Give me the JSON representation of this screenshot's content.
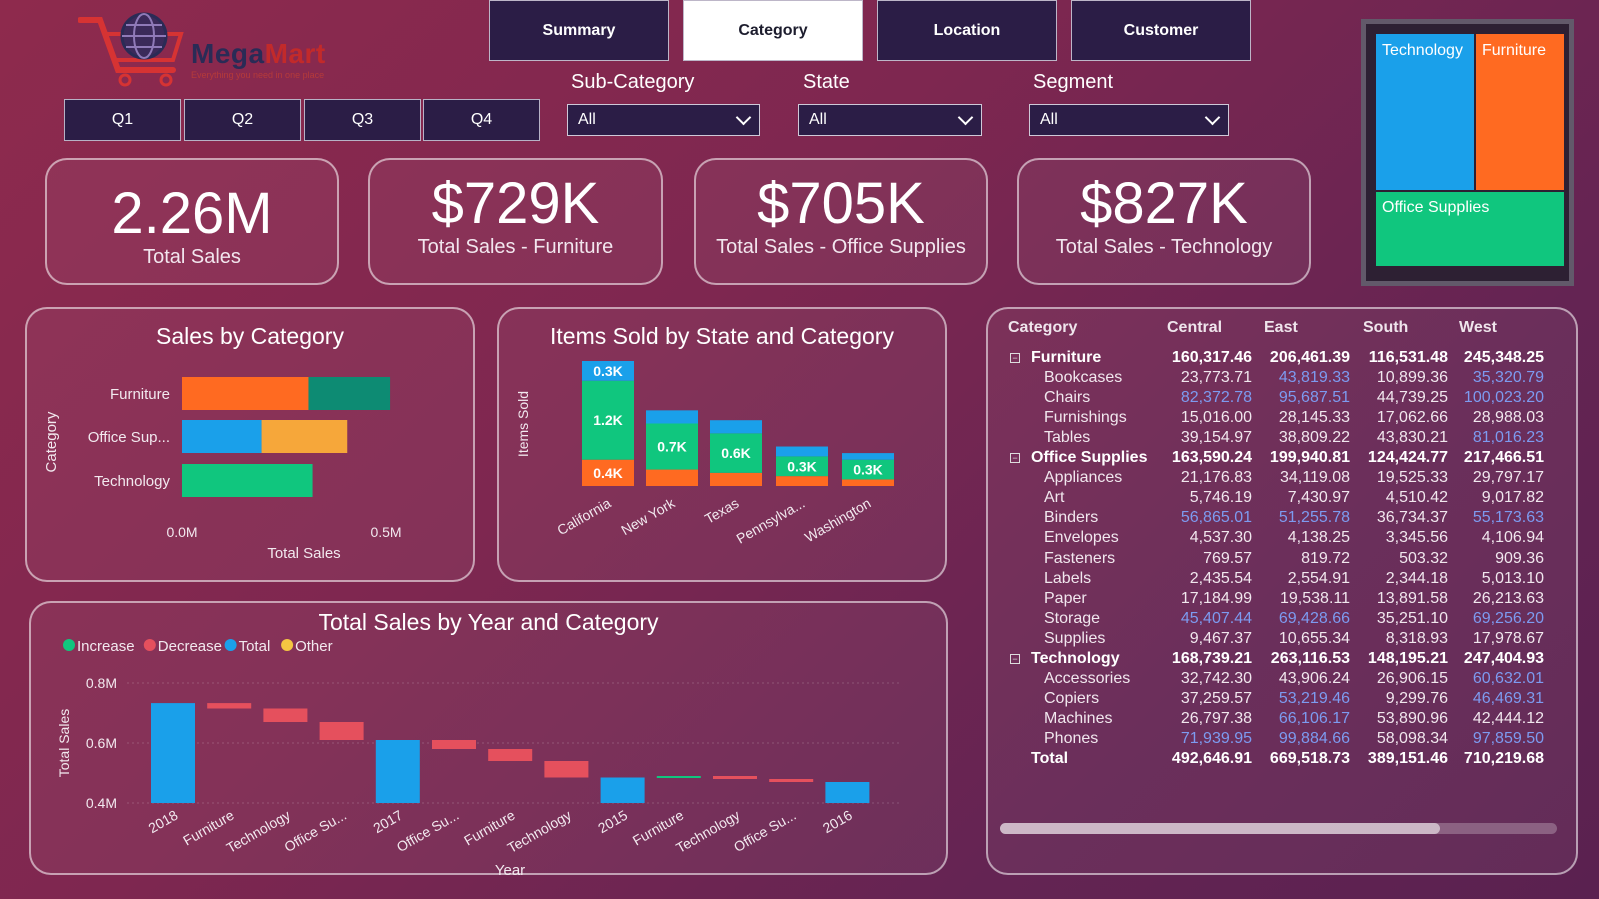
{
  "brand": {
    "name_part1": "Mega",
    "name_part2": "Mart",
    "tagline": "Everything you need in one place"
  },
  "nav": [
    {
      "label": "Summary",
      "active": false
    },
    {
      "label": "Category",
      "active": true
    },
    {
      "label": "Location",
      "active": false
    },
    {
      "label": "Customer",
      "active": false
    }
  ],
  "quarters": [
    "Q1",
    "Q2",
    "Q3",
    "Q4"
  ],
  "filters": {
    "subcategory": {
      "label": "Sub-Category",
      "value": "All"
    },
    "state": {
      "label": "State",
      "value": "All"
    },
    "segment": {
      "label": "Segment",
      "value": "All"
    }
  },
  "kpis": [
    {
      "value": "2.26M",
      "label": "Total Sales"
    },
    {
      "value": "$729K",
      "label": "Total Sales - Furniture"
    },
    {
      "value": "$705K",
      "label": "Total Sales - Office Supplies"
    },
    {
      "value": "$827K",
      "label": "Total Sales - Technology"
    }
  ],
  "treemap": {
    "tiles": [
      {
        "label": "Technology",
        "color": "#1aa0ea"
      },
      {
        "label": "Furniture",
        "color": "#ff6a21"
      },
      {
        "label": "Office Supplies",
        "color": "#10c67e"
      }
    ]
  },
  "colors": {
    "blue": "#1aa0ea",
    "orange": "#ff6a21",
    "green": "#10c67e",
    "teal": "#0d8b73",
    "amber": "#f6a73a",
    "red": "#e5505d",
    "yellow": "#f4c542"
  },
  "chart_data": [
    {
      "id": "sales_by_category",
      "type": "bar",
      "orientation": "horizontal",
      "stacked": true,
      "title": "Sales by Category",
      "xlabel": "Total Sales",
      "ylabel": "Category",
      "categories": [
        "Furniture",
        "Office Sup...",
        "Technology"
      ],
      "segments": [
        [
          {
            "value": 0.31,
            "color": "#ff6a21"
          },
          {
            "value": 0.2,
            "color": "#0d8b73"
          }
        ],
        [
          {
            "value": 0.195,
            "color": "#1aa0ea"
          },
          {
            "value": 0.21,
            "color": "#f6a73a"
          }
        ],
        [
          {
            "value": 0.32,
            "color": "#10c67e"
          }
        ]
      ],
      "xticks": [
        "0.0M",
        "0.5M"
      ],
      "xtick_values": [
        0,
        0.5
      ],
      "xlim": [
        0,
        0.5
      ]
    },
    {
      "id": "items_by_state",
      "type": "bar",
      "stacked": true,
      "title": "Items Sold by State and Category",
      "ylabel": "Items Sold",
      "categories": [
        "California",
        "New York",
        "Texas",
        "Pennsylva...",
        "Washington"
      ],
      "series": [
        {
          "name": "Furniture",
          "color": "#ff6a21",
          "values": [
            400,
            250,
            200,
            150,
            100
          ]
        },
        {
          "name": "Office Supplies",
          "color": "#10c67e",
          "values": [
            1200,
            700,
            600,
            300,
            300
          ]
        },
        {
          "name": "Technology",
          "color": "#1aa0ea",
          "values": [
            300,
            200,
            200,
            150,
            100
          ]
        }
      ],
      "data_labels": [
        [
          "0.4K",
          "1.2K",
          "0.3K"
        ],
        [
          "",
          "0.7K",
          ""
        ],
        [
          "",
          "0.6K",
          ""
        ],
        [
          "",
          "0.3K",
          ""
        ],
        [
          "",
          "0.3K",
          ""
        ]
      ],
      "ylim": [
        0,
        1900
      ]
    },
    {
      "id": "sales_by_year",
      "type": "waterfall",
      "title": "Total Sales by Year and Category",
      "xlabel": "Year",
      "ylabel": "Total Sales",
      "legend": [
        {
          "label": "Increase",
          "color": "#10c67e"
        },
        {
          "label": "Decrease",
          "color": "#e5505d"
        },
        {
          "label": "Total",
          "color": "#1aa0ea"
        },
        {
          "label": "Other",
          "color": "#f4c542"
        }
      ],
      "yticks": [
        "0.4M",
        "0.6M",
        "0.8M"
      ],
      "ytick_values": [
        0.4,
        0.6,
        0.8
      ],
      "ylim": [
        0.4,
        0.8
      ],
      "bars": [
        {
          "label": "2018",
          "kind": "total",
          "from": 0.4,
          "to": 0.733
        },
        {
          "label": "Furniture",
          "kind": "decrease",
          "from": 0.733,
          "to": 0.715
        },
        {
          "label": "Technology",
          "kind": "decrease",
          "from": 0.715,
          "to": 0.67
        },
        {
          "label": "Office Su...",
          "kind": "decrease",
          "from": 0.67,
          "to": 0.61
        },
        {
          "label": "2017",
          "kind": "total",
          "from": 0.4,
          "to": 0.61
        },
        {
          "label": "Office Su...",
          "kind": "decrease",
          "from": 0.61,
          "to": 0.58
        },
        {
          "label": "Furniture",
          "kind": "decrease",
          "from": 0.58,
          "to": 0.54
        },
        {
          "label": "Technology",
          "kind": "decrease",
          "from": 0.54,
          "to": 0.485
        },
        {
          "label": "2015",
          "kind": "total",
          "from": 0.4,
          "to": 0.485
        },
        {
          "label": "Furniture",
          "kind": "increase",
          "from": 0.485,
          "to": 0.49
        },
        {
          "label": "Technology",
          "kind": "decrease",
          "from": 0.49,
          "to": 0.48
        },
        {
          "label": "Office Su...",
          "kind": "decrease",
          "from": 0.48,
          "to": 0.47
        },
        {
          "label": "2016",
          "kind": "total",
          "from": 0.4,
          "to": 0.47
        }
      ]
    }
  ],
  "matrix": {
    "headers": [
      "Category",
      "Central",
      "East",
      "South",
      "West"
    ],
    "rows": [
      {
        "level": 0,
        "label": "Furniture",
        "values": [
          "160,317.46",
          "206,461.39",
          "116,531.48",
          "245,348.25"
        ]
      },
      {
        "level": 1,
        "label": "Bookcases",
        "values": [
          "23,773.71",
          "43,819.33",
          "10,899.36",
          "35,320.79"
        ],
        "blue": [
          false,
          true,
          false,
          true
        ]
      },
      {
        "level": 1,
        "label": "Chairs",
        "values": [
          "82,372.78",
          "95,687.51",
          "44,739.25",
          "100,023.20"
        ],
        "blue": [
          true,
          true,
          false,
          true
        ]
      },
      {
        "level": 1,
        "label": "Furnishings",
        "values": [
          "15,016.00",
          "28,145.33",
          "17,062.66",
          "28,988.03"
        ],
        "blue": [
          false,
          false,
          false,
          false
        ]
      },
      {
        "level": 1,
        "label": "Tables",
        "values": [
          "39,154.97",
          "38,809.22",
          "43,830.21",
          "81,016.23"
        ],
        "blue": [
          false,
          false,
          false,
          true
        ]
      },
      {
        "level": 0,
        "label": "Office Supplies",
        "values": [
          "163,590.24",
          "199,940.81",
          "124,424.77",
          "217,466.51"
        ]
      },
      {
        "level": 1,
        "label": "Appliances",
        "values": [
          "21,176.83",
          "34,119.08",
          "19,525.33",
          "29,797.17"
        ],
        "blue": [
          false,
          false,
          false,
          false
        ]
      },
      {
        "level": 1,
        "label": "Art",
        "values": [
          "5,746.19",
          "7,430.97",
          "4,510.42",
          "9,017.82"
        ],
        "blue": [
          false,
          false,
          false,
          false
        ]
      },
      {
        "level": 1,
        "label": "Binders",
        "values": [
          "56,865.01",
          "51,255.78",
          "36,734.37",
          "55,173.63"
        ],
        "blue": [
          true,
          true,
          false,
          true
        ]
      },
      {
        "level": 1,
        "label": "Envelopes",
        "values": [
          "4,537.30",
          "4,138.25",
          "3,345.56",
          "4,106.94"
        ],
        "blue": [
          false,
          false,
          false,
          false
        ]
      },
      {
        "level": 1,
        "label": "Fasteners",
        "values": [
          "769.57",
          "819.72",
          "503.32",
          "909.36"
        ],
        "blue": [
          false,
          false,
          false,
          false
        ]
      },
      {
        "level": 1,
        "label": "Labels",
        "values": [
          "2,435.54",
          "2,554.91",
          "2,344.18",
          "5,013.10"
        ],
        "blue": [
          false,
          false,
          false,
          false
        ]
      },
      {
        "level": 1,
        "label": "Paper",
        "values": [
          "17,184.99",
          "19,538.11",
          "13,891.58",
          "26,213.63"
        ],
        "blue": [
          false,
          false,
          false,
          false
        ]
      },
      {
        "level": 1,
        "label": "Storage",
        "values": [
          "45,407.44",
          "69,428.66",
          "35,251.10",
          "69,256.20"
        ],
        "blue": [
          true,
          true,
          false,
          true
        ]
      },
      {
        "level": 1,
        "label": "Supplies",
        "values": [
          "9,467.37",
          "10,655.34",
          "8,318.93",
          "17,978.67"
        ],
        "blue": [
          false,
          false,
          false,
          false
        ]
      },
      {
        "level": 0,
        "label": "Technology",
        "values": [
          "168,739.21",
          "263,116.53",
          "148,195.21",
          "247,404.93"
        ]
      },
      {
        "level": 1,
        "label": "Accessories",
        "values": [
          "32,742.30",
          "43,906.24",
          "26,906.15",
          "60,632.01"
        ],
        "blue": [
          false,
          false,
          false,
          true
        ]
      },
      {
        "level": 1,
        "label": "Copiers",
        "values": [
          "37,259.57",
          "53,219.46",
          "9,299.76",
          "46,469.31"
        ],
        "blue": [
          false,
          true,
          false,
          true
        ]
      },
      {
        "level": 1,
        "label": "Machines",
        "values": [
          "26,797.38",
          "66,106.17",
          "53,890.96",
          "42,444.12"
        ],
        "blue": [
          false,
          true,
          false,
          false
        ]
      },
      {
        "level": 1,
        "label": "Phones",
        "values": [
          "71,939.95",
          "99,884.66",
          "58,098.34",
          "97,859.50"
        ],
        "blue": [
          true,
          true,
          false,
          true
        ]
      },
      {
        "level": -1,
        "label": "Total",
        "values": [
          "492,646.91",
          "669,518.73",
          "389,151.46",
          "710,219.68"
        ]
      }
    ]
  }
}
